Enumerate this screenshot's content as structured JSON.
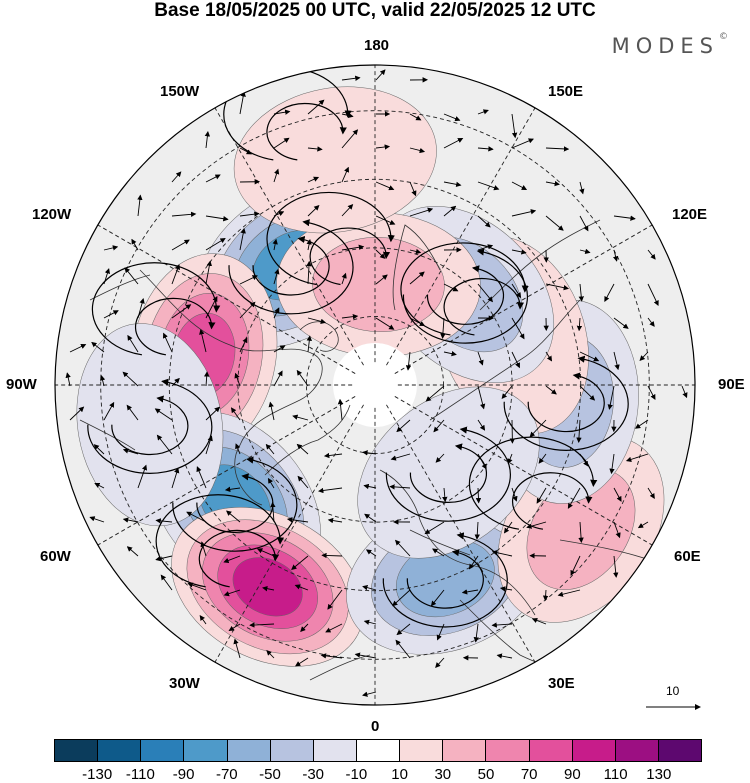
{
  "title": "Base 18/05/2025 00 UTC, valid 22/05/2025 12 UTC",
  "brand": "MODES",
  "brand_mark": "©",
  "longitude_labels": {
    "top": "180",
    "bottom": "0",
    "left": "90W",
    "right": "90E",
    "upper_left_1": "150W",
    "upper_left_2": "120W",
    "lower_left_1": "60W",
    "lower_left_2": "30W",
    "upper_right_1": "150E",
    "upper_right_2": "120E",
    "lower_right_1": "60E",
    "lower_right_2": "30E"
  },
  "vector_scale": "10",
  "colorbar": {
    "colors": [
      "#0b3c5c",
      "#0e5a8a",
      "#2a7fb8",
      "#4e9ac9",
      "#8fb1d7",
      "#b7c3e0",
      "#e2e2ee",
      "#ffffff",
      "#f9dcdc",
      "#f5b2c1",
      "#ef85ae",
      "#e3509c",
      "#c71c8a",
      "#9c0f82",
      "#5d086f"
    ],
    "ticks": [
      "-130",
      "-110",
      "-90",
      "-70",
      "-50",
      "-30",
      "-10",
      "10",
      "30",
      "50",
      "70",
      "90",
      "110",
      "130"
    ]
  },
  "anomalies": [
    {
      "lon": -145,
      "lat": 58,
      "value": -95
    },
    {
      "lon": -100,
      "lat": 52,
      "value": 80
    },
    {
      "lon": -50,
      "lat": 50,
      "value": -80
    },
    {
      "lon": -28,
      "lat": 40,
      "value": 100
    },
    {
      "lon": 20,
      "lat": 45,
      "value": -60
    },
    {
      "lon": 55,
      "lat": 35,
      "value": 50
    },
    {
      "lon": 85,
      "lat": 48,
      "value": -40
    },
    {
      "lon": 110,
      "lat": 58,
      "value": 25
    },
    {
      "lon": 135,
      "lat": 62,
      "value": -45
    },
    {
      "lon": 178,
      "lat": 68,
      "value": 40
    },
    {
      "lon": -170,
      "lat": 40,
      "value": 20
    },
    {
      "lon": -80,
      "lat": 40,
      "value": -20
    },
    {
      "lon": 40,
      "lat": 65,
      "value": -20
    }
  ]
}
